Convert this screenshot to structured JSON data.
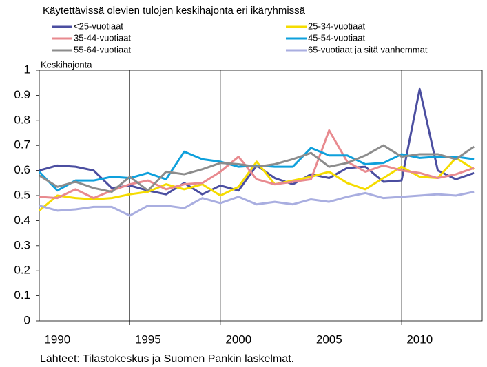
{
  "chart_data": {
    "type": "line",
    "title": "Käytettävissä olevien tulojen keskihajonta eri ikäryhmissä",
    "y_label": "Keskihajonta",
    "source": "Lähteet: Tilastokeskus ja Suomen Pankin laskelmat.",
    "x": [
      1989,
      1990,
      1991,
      1992,
      1993,
      1994,
      1995,
      1996,
      1997,
      1998,
      1999,
      2000,
      2001,
      2002,
      2003,
      2004,
      2005,
      2006,
      2007,
      2008,
      2009,
      2010,
      2011,
      2012,
      2013
    ],
    "xlim": [
      1989,
      2013.45
    ],
    "xticks": [
      1990,
      1995,
      2000,
      2005,
      2010
    ],
    "xgrid": [
      1994,
      1999,
      2004,
      2009
    ],
    "ylim": [
      0,
      1
    ],
    "yticks": [
      0,
      0.1,
      0.2,
      0.3,
      0.4,
      0.5,
      0.6,
      0.7,
      0.8,
      0.9,
      1
    ],
    "series": [
      {
        "name": "<25-vuotiaat",
        "color": "#4b4ea0",
        "values": [
          0.6,
          0.62,
          0.615,
          0.6,
          0.53,
          0.54,
          0.52,
          0.505,
          0.55,
          0.505,
          0.54,
          0.52,
          0.62,
          0.57,
          0.545,
          0.585,
          0.57,
          0.61,
          0.615,
          0.555,
          0.56,
          0.925,
          0.6,
          0.565,
          0.59
        ]
      },
      {
        "name": "25-34-vuotiaat",
        "color": "#f5dc00",
        "values": [
          0.44,
          0.5,
          0.49,
          0.485,
          0.49,
          0.505,
          0.515,
          0.545,
          0.525,
          0.545,
          0.5,
          0.535,
          0.635,
          0.545,
          0.56,
          0.575,
          0.595,
          0.55,
          0.525,
          0.57,
          0.615,
          0.575,
          0.57,
          0.65,
          0.605
        ]
      },
      {
        "name": "35-44-vuotiaat",
        "color": "#e88a8f",
        "values": [
          0.495,
          0.49,
          0.525,
          0.49,
          0.52,
          0.545,
          0.56,
          0.525,
          0.545,
          0.55,
          0.595,
          0.655,
          0.565,
          0.545,
          0.555,
          0.565,
          0.76,
          0.635,
          0.595,
          0.62,
          0.6,
          0.59,
          0.57,
          0.585,
          0.61
        ]
      },
      {
        "name": "45-54-vuotiaat",
        "color": "#0ea0dc",
        "values": [
          0.595,
          0.52,
          0.56,
          0.56,
          0.575,
          0.57,
          0.59,
          0.565,
          0.675,
          0.645,
          0.635,
          0.615,
          0.62,
          0.615,
          0.615,
          0.69,
          0.66,
          0.66,
          0.625,
          0.63,
          0.665,
          0.65,
          0.655,
          0.655,
          0.645
        ]
      },
      {
        "name": "55-64-vuotiaat",
        "color": "#8c8c8c",
        "values": [
          0.58,
          0.535,
          0.555,
          0.53,
          0.515,
          0.575,
          0.52,
          0.595,
          0.585,
          0.605,
          0.63,
          0.625,
          0.615,
          0.625,
          0.645,
          0.67,
          0.615,
          0.63,
          0.66,
          0.7,
          0.655,
          0.665,
          0.665,
          0.645,
          0.695
        ]
      },
      {
        "name": "65-vuotiaat ja sitä vanhemmat",
        "color": "#a9aee0",
        "values": [
          0.46,
          0.44,
          0.445,
          0.455,
          0.455,
          0.42,
          0.46,
          0.46,
          0.45,
          0.49,
          0.47,
          0.495,
          0.465,
          0.475,
          0.465,
          0.485,
          0.475,
          0.495,
          0.51,
          0.49,
          0.495,
          0.5,
          0.505,
          0.5,
          0.515
        ]
      }
    ]
  }
}
